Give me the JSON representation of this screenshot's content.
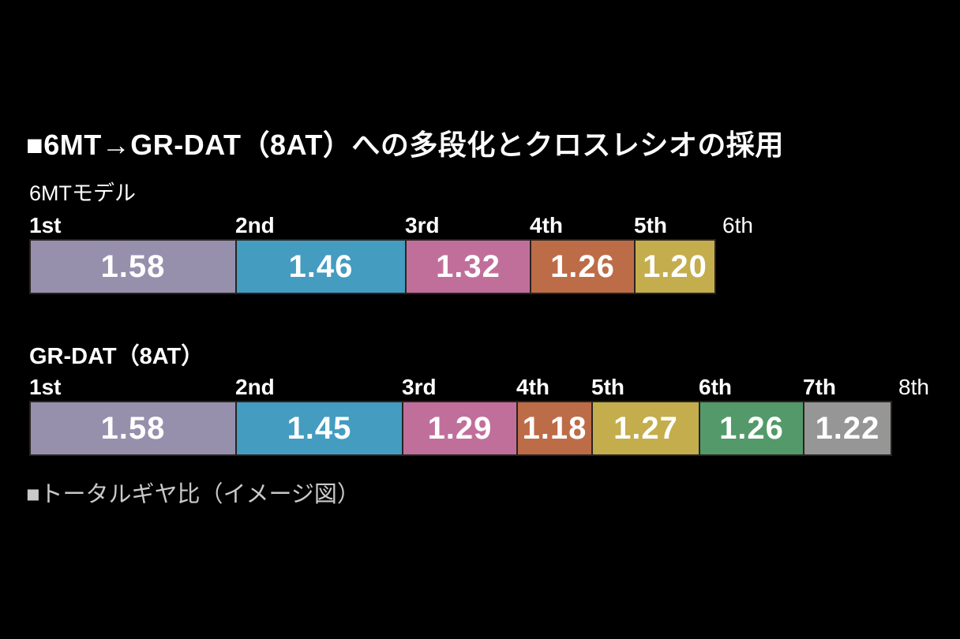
{
  "title": "■6MT→GR-DAT（8AT）への多段化とクロスレシオの採用",
  "caption": "■トータルギヤ比（イメージ図）",
  "chart_data": {
    "type": "bar",
    "title": "6MT→GR-DAT（8AT）への多段化とクロスレシオの採用",
    "note": "トータルギヤ比（イメージ図）",
    "orientation": "horizontal stacked segments",
    "scale": "segment width proportional to log10 of gear-step ratio",
    "rows": [
      {
        "name": "6MTモデル",
        "gear_labels": [
          "1st",
          "2nd",
          "3rd",
          "4th",
          "5th",
          "6th"
        ],
        "steps": [
          {
            "ratio": 1.58,
            "label": "1.58",
            "color": "#9690ad"
          },
          {
            "ratio": 1.46,
            "label": "1.46",
            "color": "#449cc0"
          },
          {
            "ratio": 1.32,
            "label": "1.32",
            "color": "#c06f9b"
          },
          {
            "ratio": 1.26,
            "label": "1.26",
            "color": "#bd6c48"
          },
          {
            "ratio": 1.2,
            "label": "1.20",
            "color": "#c4ad4c"
          }
        ]
      },
      {
        "name": "GR-DAT（8AT）",
        "gear_labels": [
          "1st",
          "2nd",
          "3rd",
          "4th",
          "5th",
          "6th",
          "7th",
          "8th"
        ],
        "steps": [
          {
            "ratio": 1.58,
            "label": "1.58",
            "color": "#9690ad"
          },
          {
            "ratio": 1.45,
            "label": "1.45",
            "color": "#449cc0"
          },
          {
            "ratio": 1.29,
            "label": "1.29",
            "color": "#c06f9b"
          },
          {
            "ratio": 1.18,
            "label": "1.18",
            "color": "#bd6c48"
          },
          {
            "ratio": 1.27,
            "label": "1.27",
            "color": "#c4ad4c"
          },
          {
            "ratio": 1.26,
            "label": "1.26",
            "color": "#53996a"
          },
          {
            "ratio": 1.22,
            "label": "1.22",
            "color": "#969696"
          }
        ]
      }
    ]
  }
}
